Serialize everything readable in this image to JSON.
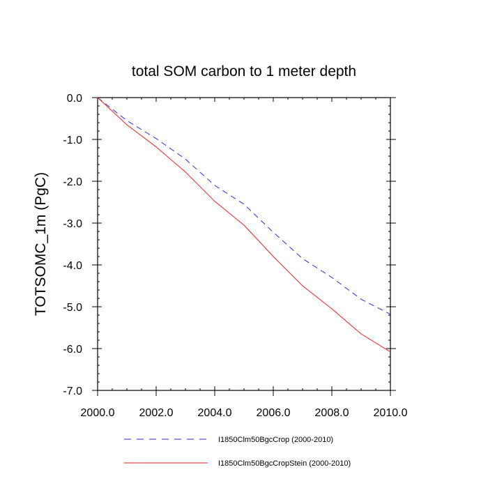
{
  "chart_data": {
    "type": "line",
    "title": "total SOM carbon to 1 meter depth",
    "xlabel": "",
    "ylabel": "TOTSOMC_1m  (PgC)",
    "xlim": [
      2000,
      2010
    ],
    "ylim": [
      -7,
      0
    ],
    "x_ticks": [
      "2000.0",
      "2002.0",
      "2004.0",
      "2006.0",
      "2008.0",
      "2010.0"
    ],
    "y_ticks": [
      "0.0",
      "-1.0",
      "-2.0",
      "-3.0",
      "-4.0",
      "-5.0",
      "-6.0",
      "-7.0"
    ],
    "x": [
      2000,
      2001,
      2002,
      2003,
      2004,
      2005,
      2006,
      2007,
      2008,
      2009,
      2010
    ],
    "series": [
      {
        "name": "I1850Clm50BgcCrop (2000-2010)",
        "color": "#2a2ae0",
        "dash": "dashed",
        "values": [
          0.0,
          -0.55,
          -0.98,
          -1.47,
          -2.1,
          -2.55,
          -3.22,
          -3.85,
          -4.3,
          -4.82,
          -5.18
        ]
      },
      {
        "name": "I1850Clm50BgcCropStein (2000-2010)",
        "color": "#ee2222",
        "dash": "solid",
        "values": [
          0.0,
          -0.65,
          -1.18,
          -1.78,
          -2.48,
          -3.05,
          -3.8,
          -4.5,
          -5.05,
          -5.65,
          -6.08
        ]
      }
    ],
    "grid": false,
    "legend_position": "bottom"
  }
}
